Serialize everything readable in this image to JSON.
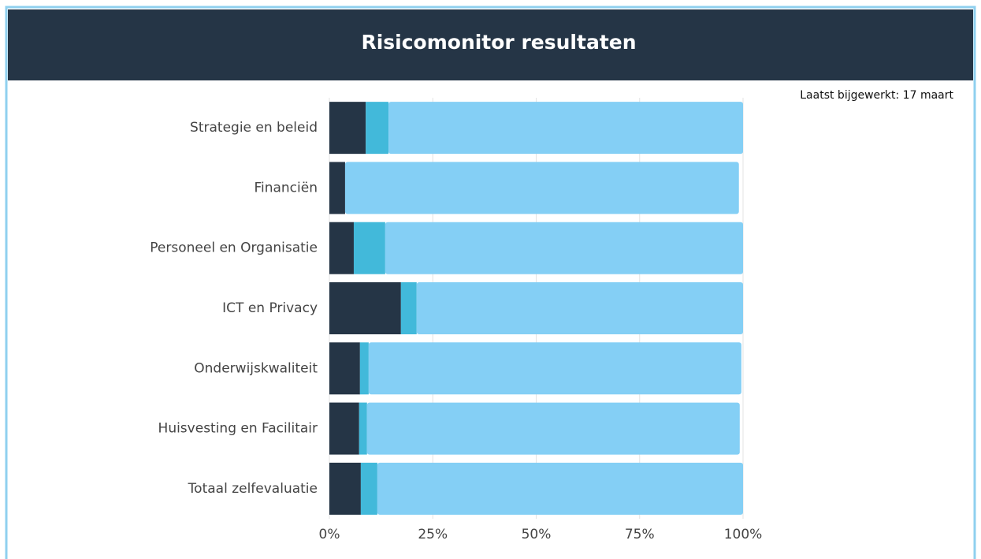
{
  "chart_data": {
    "type": "stacked-bar-horizontal",
    "title": "Risicomonitor resultaten",
    "subtitle": "Laatst bijgewerkt: 17 maart",
    "categories": [
      "Strategie en beleid",
      "Financiën",
      "Personeel en Organisatie",
      "ICT en Privacy",
      "Onderwijskwaliteit",
      "Huisvesting en Facilitair",
      "Totaal zelfevaluatie"
    ],
    "series": [
      {
        "color": "#253546",
        "values": [
          8.8,
          3.8,
          5.9,
          17.3,
          7.4,
          7.2,
          7.6
        ]
      },
      {
        "color": "#42b9da",
        "values": [
          5.5,
          0,
          7.6,
          3.8,
          2.1,
          1.9,
          4.0
        ]
      },
      {
        "color": "#84cff5",
        "values": [
          85.7,
          95.2,
          86.5,
          78.9,
          90.1,
          90.1,
          88.4
        ]
      }
    ],
    "xlim": [
      0,
      100
    ],
    "xticks": [
      {
        "value": 0,
        "label": "0%"
      },
      {
        "value": 25,
        "label": "25%"
      },
      {
        "value": 50,
        "label": "50%"
      },
      {
        "value": 75,
        "label": "75%"
      },
      {
        "value": 100,
        "label": "100%"
      }
    ],
    "grid": true
  }
}
